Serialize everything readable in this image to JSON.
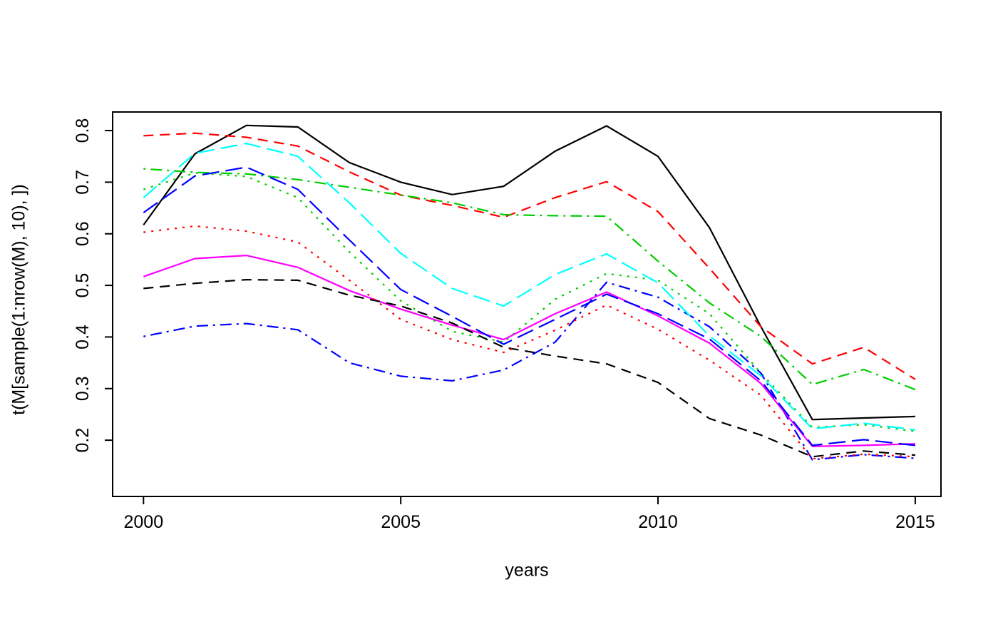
{
  "figure": {
    "background": "#FFFFFF",
    "text_color": "#000000"
  },
  "chart_data": {
    "type": "line",
    "title": "",
    "xlabel": "years",
    "ylabel": "t(M[sample(1:nrow(M), 10), ])",
    "x": [
      2000,
      2001,
      2002,
      2003,
      2004,
      2005,
      2006,
      2007,
      2008,
      2009,
      2010,
      2011,
      2012,
      2013,
      2014,
      2015
    ],
    "x_ticks": [
      2000,
      2005,
      2010,
      2015
    ],
    "y_ticks": [
      0.2,
      0.3,
      0.4,
      0.5,
      0.6,
      0.7,
      0.8
    ],
    "xlim": [
      1999.4,
      2015.5
    ],
    "ylim": [
      0.091,
      0.836
    ],
    "grid": false,
    "legend": "none",
    "axis_color": "#000000",
    "series": [
      {
        "id": "series-1-black-solid",
        "color": "#000000",
        "linetype": "solid",
        "values": [
          0.617,
          0.755,
          0.81,
          0.807,
          0.738,
          0.7,
          0.676,
          0.692,
          0.76,
          0.809,
          0.75,
          0.612,
          0.42,
          0.24,
          0.243,
          0.246
        ]
      },
      {
        "id": "series-2-red-dashed",
        "color": "#FF0000",
        "linetype": "dashed",
        "values": [
          0.79,
          0.795,
          0.787,
          0.77,
          0.72,
          0.675,
          0.655,
          0.632,
          0.67,
          0.701,
          0.643,
          0.533,
          0.42,
          0.348,
          0.38,
          0.318
        ]
      },
      {
        "id": "series-3-green-dotted",
        "color": "#00CD00",
        "linetype": "dotted",
        "values": [
          0.686,
          0.718,
          0.711,
          0.67,
          0.565,
          0.47,
          0.411,
          0.39,
          0.473,
          0.523,
          0.51,
          0.445,
          0.33,
          0.225,
          0.23,
          0.217
        ]
      },
      {
        "id": "series-4-blue-dotdash",
        "color": "#0000FF",
        "linetype": "dotdash",
        "values": [
          0.401,
          0.421,
          0.426,
          0.414,
          0.35,
          0.324,
          0.315,
          0.336,
          0.39,
          0.506,
          0.477,
          0.42,
          0.33,
          0.162,
          0.172,
          0.165
        ]
      },
      {
        "id": "series-5-cyan-longdash",
        "color": "#00FFFF",
        "linetype": "longdash",
        "values": [
          0.67,
          0.756,
          0.775,
          0.75,
          0.66,
          0.562,
          0.494,
          0.46,
          0.521,
          0.561,
          0.505,
          0.402,
          0.325,
          0.222,
          0.233,
          0.22
        ]
      },
      {
        "id": "series-6-magenta-solid",
        "color": "#FF00FF",
        "linetype": "solid",
        "values": [
          0.517,
          0.552,
          0.558,
          0.535,
          0.49,
          0.454,
          0.423,
          0.395,
          0.445,
          0.487,
          0.441,
          0.388,
          0.31,
          0.188,
          0.19,
          0.193
        ]
      },
      {
        "id": "series-7-black-dashed",
        "color": "#000000",
        "linetype": "dashed",
        "values": [
          0.494,
          0.504,
          0.511,
          0.51,
          0.481,
          0.46,
          0.427,
          0.38,
          0.363,
          0.348,
          0.312,
          0.242,
          0.21,
          0.168,
          0.179,
          0.171
        ]
      },
      {
        "id": "series-8-red-dotted",
        "color": "#FF0000",
        "linetype": "dotted",
        "values": [
          0.603,
          0.615,
          0.605,
          0.584,
          0.51,
          0.434,
          0.395,
          0.37,
          0.413,
          0.462,
          0.415,
          0.355,
          0.287,
          0.164,
          0.173,
          0.168
        ]
      },
      {
        "id": "series-9-green-dotdash",
        "color": "#00CD00",
        "linetype": "dotdash",
        "values": [
          0.726,
          0.719,
          0.716,
          0.705,
          0.69,
          0.675,
          0.66,
          0.637,
          0.635,
          0.634,
          0.547,
          0.466,
          0.401,
          0.308,
          0.337,
          0.298
        ]
      },
      {
        "id": "series-10-blue-longdash",
        "color": "#0000FF",
        "linetype": "longdash",
        "values": [
          0.641,
          0.712,
          0.729,
          0.686,
          0.588,
          0.492,
          0.44,
          0.386,
          0.434,
          0.483,
          0.445,
          0.396,
          0.315,
          0.19,
          0.201,
          0.19
        ]
      }
    ]
  }
}
